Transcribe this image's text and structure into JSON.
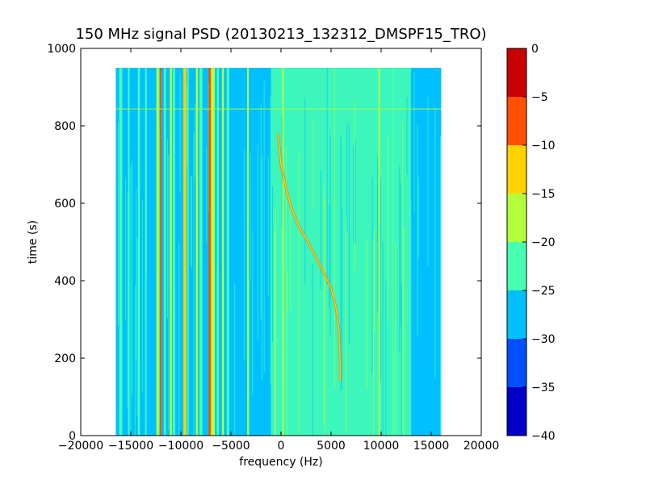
{
  "chart_data": {
    "type": "heatmap",
    "title": "150 MHz signal PSD (20130213_132312_DMSPF15_TRO)",
    "xlabel": "frequency (Hz)",
    "ylabel": "time (s)",
    "xlim": [
      -20000,
      20000
    ],
    "ylim": [
      0,
      1000
    ],
    "xticks": [
      {
        "value": -20000,
        "label": "−20000"
      },
      {
        "value": -15000,
        "label": "−15000"
      },
      {
        "value": -10000,
        "label": "−10000"
      },
      {
        "value": -5000,
        "label": "−5000"
      },
      {
        "value": 0,
        "label": "0"
      },
      {
        "value": 5000,
        "label": "5000"
      },
      {
        "value": 10000,
        "label": "10000"
      },
      {
        "value": 15000,
        "label": "15000"
      },
      {
        "value": 20000,
        "label": "20000"
      }
    ],
    "yticks": [
      {
        "value": 0,
        "label": "0"
      },
      {
        "value": 200,
        "label": "200"
      },
      {
        "value": 400,
        "label": "400"
      },
      {
        "value": 600,
        "label": "600"
      },
      {
        "value": 800,
        "label": "800"
      },
      {
        "value": 1000,
        "label": "1000"
      }
    ],
    "data_extent": {
      "freq": [
        -16500,
        16000
      ],
      "time": [
        0,
        950
      ]
    },
    "grid": false,
    "colorbar": {
      "levels": [
        -40,
        -35,
        -30,
        -25,
        -20,
        -15,
        -10,
        -5,
        0
      ],
      "labels": [
        "−40",
        "−35",
        "−30",
        "−25",
        "−20",
        "−15",
        "−10",
        "−5",
        "0"
      ],
      "colors": [
        "#0000c8",
        "#0050ff",
        "#00c0ff",
        "#46ffb0",
        "#b4ff3c",
        "#ffd200",
        "#ff5000",
        "#c80000"
      ]
    },
    "background_level_color": "#00c0ff",
    "vertical_bands": [
      {
        "freq": -16000,
        "width": 300,
        "color": "#46ffb0"
      },
      {
        "freq": -15200,
        "width": 150,
        "color": "#46ffb0"
      },
      {
        "freq": -14200,
        "width": 200,
        "color": "#46ffb0"
      },
      {
        "freq": -13500,
        "width": 150,
        "color": "#46ffb0"
      },
      {
        "freq": -12300,
        "width": 300,
        "color": "#b4ff3c"
      },
      {
        "freq": -12000,
        "width": 150,
        "color": "#ff5000"
      },
      {
        "freq": -11600,
        "width": 200,
        "color": "#46ffb0"
      },
      {
        "freq": -11000,
        "width": 200,
        "color": "#b4ff3c"
      },
      {
        "freq": -10700,
        "width": 250,
        "color": "#46ffb0"
      },
      {
        "freq": -9600,
        "width": 300,
        "color": "#ffd200"
      },
      {
        "freq": -9300,
        "width": 150,
        "color": "#46ffb0"
      },
      {
        "freq": -8400,
        "width": 200,
        "color": "#b4ff3c"
      },
      {
        "freq": -8000,
        "width": 300,
        "color": "#46ffb0"
      },
      {
        "freq": -7100,
        "width": 250,
        "color": "#ff5000"
      },
      {
        "freq": -6800,
        "width": 400,
        "color": "#b4ff3c"
      },
      {
        "freq": -6300,
        "width": 200,
        "color": "#46ffb0"
      },
      {
        "freq": -5800,
        "width": 200,
        "color": "#b4ff3c"
      },
      {
        "freq": -5300,
        "width": 250,
        "color": "#46ffb0"
      },
      {
        "freq": -3300,
        "width": 150,
        "color": "#b4ff3c"
      },
      {
        "freq": 200,
        "width": 150,
        "color": "#b4ff3c"
      },
      {
        "freq": 9800,
        "width": 150,
        "color": "#b4ff3c"
      },
      {
        "freq": 11200,
        "width": 150,
        "color": "#46ffb0"
      }
    ],
    "green_region": {
      "freq": [
        -1000,
        13000
      ],
      "color": "#46ffb0"
    },
    "series": [
      {
        "type": "line",
        "x": [
          -300,
          0,
          500,
          1000,
          1800,
          2700,
          3500,
          4300,
          5000,
          5500,
          5800,
          5900,
          5900
        ],
        "y": [
          780,
          700,
          640,
          590,
          540,
          500,
          460,
          420,
          380,
          330,
          270,
          200,
          140
        ],
        "color": "#ffd200"
      }
    ]
  }
}
